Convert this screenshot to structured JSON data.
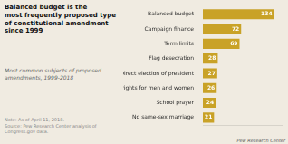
{
  "chart_data": {
    "type": "bar",
    "orientation": "horizontal",
    "title": "Balanced budget is the\nmost frequently proposed type\nof constitutional amendment\nsince 1999",
    "subtitle": "Most common subjects of proposed\namendments, 1999-2018",
    "annotations": [
      "Note: As of April 11, 2018.\nSource: Pew Research Center analysis of Congress.gov data.",
      "Pew Research Center"
    ],
    "categories": [
      "Balanced budget",
      "Campaign finance",
      "Term limits",
      "Flag desecration",
      "Direct election of president",
      "Equal rights for men and women",
      "School prayer",
      "No same-sex marriage"
    ],
    "values": [
      134,
      72,
      69,
      28,
      27,
      26,
      24,
      21
    ],
    "color": "#c9a227",
    "xlim": [
      0,
      150
    ],
    "grid": false,
    "data_labels": true,
    "tick_labels": "y"
  }
}
